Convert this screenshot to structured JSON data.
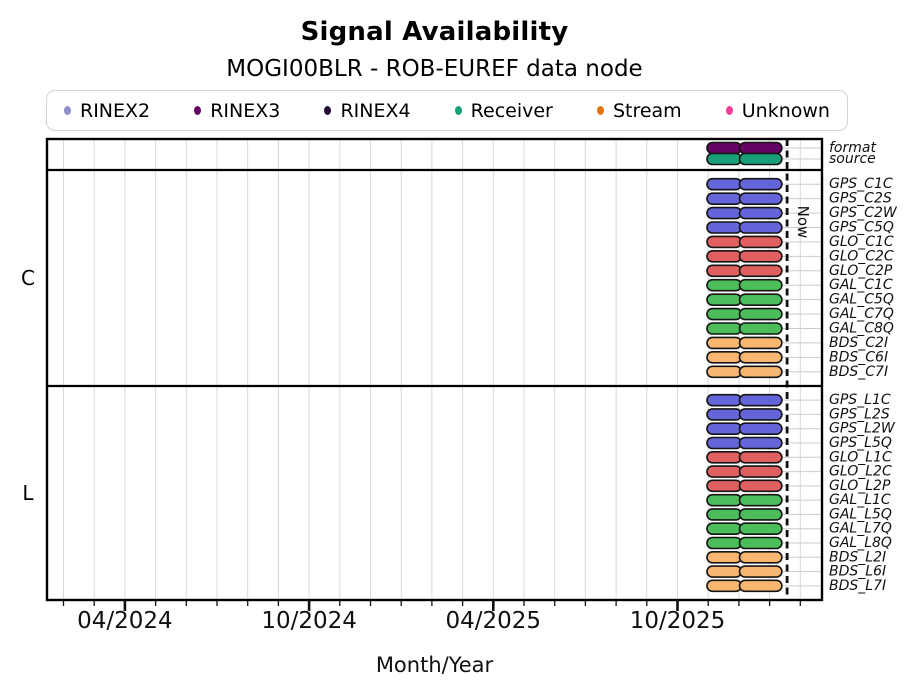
{
  "title": "Signal Availability",
  "subtitle": "MOGI00BLR - ROB-EUREF data node",
  "legend": [
    {
      "label": "RINEX2",
      "color": "#8f8fce"
    },
    {
      "label": "RINEX3",
      "color": "#670365"
    },
    {
      "label": "RINEX4",
      "color": "#250a38"
    },
    {
      "label": "Receiver",
      "color": "#17a077"
    },
    {
      "label": "Stream",
      "color": "#e2730f"
    },
    {
      "label": "Unknown",
      "color": "#f23d96"
    }
  ],
  "chart_data": {
    "type": "bar",
    "variant": "horizontal-availability-timeline",
    "title": "Signal Availability",
    "subtitle": "MOGI00BLR - ROB-EUREF data node",
    "xlabel": "Month/Year",
    "x_axis": {
      "unit": "month index, m=1 corresponds to 02/2024, +1 per month",
      "plot_range_months": [
        0.46,
        25.7
      ],
      "minor_tick_range": [
        1,
        25
      ],
      "minor_tick_interval": 1,
      "major_ticks": [
        {
          "m": 3,
          "label": "04/2024"
        },
        {
          "m": 9,
          "label": "10/2024"
        },
        {
          "m": 15,
          "label": "04/2025"
        },
        {
          "m": 21,
          "label": "10/2025"
        }
      ],
      "grid": true
    },
    "now_marker": {
      "m": 24.57,
      "label": "Now",
      "style": "dashed-vertical-line"
    },
    "bar_segments_months": [
      [
        21.96,
        23.08
      ],
      [
        23.02,
        24.4
      ]
    ],
    "bar_span_note": "all rows show identical availability: approx Nov 2025 through late Jan 2026, ending just before Now",
    "sections": [
      {
        "label": "",
        "rows": [
          {
            "label": "format",
            "color": "#660464"
          },
          {
            "label": "source",
            "color": "#17a077"
          }
        ]
      },
      {
        "label": "C",
        "rows": [
          {
            "label": "GPS_C1C",
            "color": "#6565da"
          },
          {
            "label": "GPS_C2S",
            "color": "#6565da"
          },
          {
            "label": "GPS_C2W",
            "color": "#6565da"
          },
          {
            "label": "GPS_C5Q",
            "color": "#6565da"
          },
          {
            "label": "GLO_C1C",
            "color": "#e06060"
          },
          {
            "label": "GLO_C2C",
            "color": "#e06060"
          },
          {
            "label": "GLO_C2P",
            "color": "#e06060"
          },
          {
            "label": "GAL_C1C",
            "color": "#4cbd5b"
          },
          {
            "label": "GAL_C5Q",
            "color": "#4cbd5b"
          },
          {
            "label": "GAL_C7Q",
            "color": "#4cbd5b"
          },
          {
            "label": "GAL_C8Q",
            "color": "#4cbd5b"
          },
          {
            "label": "BDS_C2I",
            "color": "#f8b671"
          },
          {
            "label": "BDS_C6I",
            "color": "#f8b671"
          },
          {
            "label": "BDS_C7I",
            "color": "#f8b671"
          }
        ]
      },
      {
        "label": "L",
        "rows": [
          {
            "label": "GPS_L1C",
            "color": "#6565da"
          },
          {
            "label": "GPS_L2S",
            "color": "#6565da"
          },
          {
            "label": "GPS_L2W",
            "color": "#6565da"
          },
          {
            "label": "GPS_L5Q",
            "color": "#6565da"
          },
          {
            "label": "GLO_L1C",
            "color": "#e06060"
          },
          {
            "label": "GLO_L2C",
            "color": "#e06060"
          },
          {
            "label": "GLO_L2P",
            "color": "#e06060"
          },
          {
            "label": "GAL_L1C",
            "color": "#4cbd5b"
          },
          {
            "label": "GAL_L5Q",
            "color": "#4cbd5b"
          },
          {
            "label": "GAL_L7Q",
            "color": "#4cbd5b"
          },
          {
            "label": "GAL_L8Q",
            "color": "#4cbd5b"
          },
          {
            "label": "BDS_L2I",
            "color": "#f8b671"
          },
          {
            "label": "BDS_L6I",
            "color": "#f8b671"
          },
          {
            "label": "BDS_L7I",
            "color": "#f8b671"
          }
        ]
      }
    ],
    "colors": {
      "GPS": "#6565da",
      "GLO": "#e06060",
      "GAL": "#4cbd5b",
      "BDS": "#f8b671",
      "RINEX3_format": "#660464",
      "Receiver_source": "#17a077",
      "grid": "#d9d9d9",
      "leader_line": "#c6cfc6"
    }
  }
}
